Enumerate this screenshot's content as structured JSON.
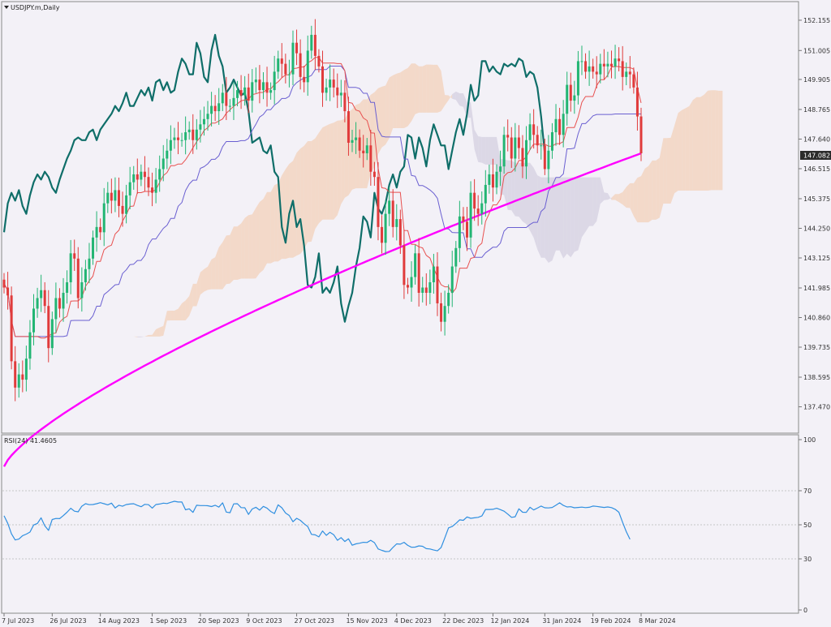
{
  "header": {
    "symbol_label": "USDJPY.m,Daily",
    "rsi_label": "RSI(24) 41.4605"
  },
  "chart_data": [
    {
      "type": "candlestick",
      "title": "USDJPY.m,Daily",
      "ylim": [
        136.5,
        152.8
      ],
      "price_ticks": [
        "152.155",
        "151.005",
        "149.905",
        "148.765",
        "147.640",
        "146.515",
        "145.375",
        "144.250",
        "143.125",
        "141.985",
        "140.860",
        "139.735",
        "138.595",
        "137.470"
      ],
      "current_price": "147.082",
      "x_labels": [
        "7 Jul 2023",
        "26 Jul 2023",
        "14 Aug 2023",
        "1 Sep 2023",
        "20 Sep 2023",
        "9 Oct 2023",
        "27 Oct 2023",
        "15 Nov 2023",
        "4 Dec 2023",
        "22 Dec 2023",
        "12 Jan 2024",
        "31 Jan 2024",
        "19 Feb 2024",
        "8 Mar 2024"
      ],
      "closes": [
        142.0,
        141.7,
        139.2,
        138.2,
        138.7,
        138.5,
        139.3,
        140.3,
        141.2,
        141.6,
        141.9,
        141.3,
        139.7,
        140.8,
        141.6,
        141.2,
        141.8,
        142.2,
        143.3,
        143.1,
        141.6,
        142.2,
        142.7,
        143.1,
        143.9,
        144.3,
        144.1,
        145.2,
        145.6,
        145.3,
        145.7,
        145.1,
        144.8,
        145.5,
        146.0,
        146.3,
        146.1,
        146.4,
        146.2,
        145.8,
        145.6,
        146.1,
        146.5,
        146.9,
        147.2,
        147.6,
        147.7,
        147.6,
        147.6,
        147.9,
        148.0,
        147.6,
        148.0,
        148.2,
        148.4,
        148.6,
        148.9,
        148.7,
        149.0,
        149.4,
        148.9,
        148.9,
        149.2,
        149.5,
        149.3,
        149.6,
        149.1,
        149.8,
        149.9,
        149.5,
        149.8,
        149.4,
        149.5,
        150.2,
        150.7,
        150.5,
        150.1,
        150.1,
        151.3,
        150.9,
        150.0,
        149.8,
        151.0,
        151.6,
        150.8,
        150.4,
        149.4,
        149.6,
        149.9,
        149.6,
        149.3,
        149.4,
        148.7,
        147.5,
        147.6,
        147.7,
        147.2,
        147.1,
        147.4,
        146.4,
        146.2,
        144.3,
        143.7,
        144.8,
        145.3,
        144.3,
        144.6,
        143.6,
        142.1,
        142.0,
        142.4,
        143.3,
        141.8,
        142.0,
        141.8,
        142.2,
        142.8,
        141.4,
        140.7,
        141.3,
        141.8,
        142.8,
        143.5,
        144.7,
        144.5,
        143.9,
        145.6,
        145.0,
        144.8,
        145.2,
        145.9,
        146.3,
        145.8,
        146.4,
        146.6,
        147.8,
        147.7,
        146.9,
        147.7,
        147.3,
        146.6,
        147.6,
        148.2,
        147.8,
        147.4,
        147.4,
        146.5,
        147.2,
        147.9,
        148.4,
        147.8,
        148.6,
        149.7,
        149.1,
        149.3,
        150.6,
        150.6,
        150.2,
        150.4,
        150.2,
        150.1,
        150.5,
        150.4,
        150.5,
        150.4,
        150.7,
        150.6,
        150.0,
        150.2,
        150.1,
        149.6,
        148.5,
        147.1
      ]
    },
    {
      "type": "line",
      "title": "RSI(24) 41.4605",
      "ylim": [
        0,
        100
      ],
      "levels": [
        30,
        50,
        70
      ],
      "y_ticks": [
        "100",
        "70",
        "50",
        "30",
        "0"
      ],
      "values": [
        55.3,
        50.8,
        44.7,
        41.1,
        41.6,
        43.6,
        44.5,
        45.7,
        49.9,
        50.8,
        54.1,
        49.4,
        46.7,
        53.1,
        53.7,
        53.6,
        55.4,
        57.4,
        59.7,
        58.0,
        57.6,
        60.9,
        62.4,
        61.8,
        61.9,
        62.4,
        63.0,
        62.4,
        61.7,
        62.7,
        59.9,
        61.5,
        60.9,
        61.9,
        62.2,
        62.4,
        61.4,
        60.6,
        62.0,
        61.8,
        59.8,
        61.9,
        62.2,
        62.7,
        62.5,
        63.2,
        63.8,
        63.4,
        63.4,
        58.8,
        59.4,
        57.3,
        61.5,
        61.3,
        61.3,
        61.2,
        60.7,
        61.5,
        60.4,
        62.9,
        57.5,
        57.1,
        62.3,
        62.4,
        60.1,
        60.0,
        56.1,
        59.3,
        60.3,
        58.6,
        60.8,
        59.8,
        57.8,
        56.6,
        61.7,
        60.0,
        56.9,
        55.5,
        51.8,
        53.8,
        52.6,
        50.6,
        49.0,
        44.4,
        44.1,
        42.9,
        46.4,
        43.8,
        45.6,
        44.2,
        40.9,
        42.5,
        40.2,
        41.8,
        38.0,
        38.8,
        39.2,
        39.7,
        39.6,
        40.9,
        39.5,
        35.8,
        35.0,
        34.3,
        34.4,
        36.7,
        38.8,
        38.6,
        39.7,
        37.9,
        36.8,
        36.9,
        37.6,
        37.4,
        36.0,
        35.8,
        35.2,
        34.7,
        36.6,
        42.3,
        48.2,
        49.0,
        50.8,
        52.9,
        52.6,
        54.6,
        53.8,
        54.1,
        54.4,
        55.2,
        59.0,
        59.0,
        59.1,
        59.7,
        58.9,
        58.0,
        56.3,
        54.4,
        54.7,
        59.4,
        57.4,
        57.3,
        60.3,
        58.7,
        59.8,
        61.0,
        60.0,
        59.9,
        60.2,
        61.5,
        62.9,
        61.4,
        60.5,
        60.6,
        60.0,
        60.2,
        60.4,
        60.1,
        60.3,
        61.0,
        60.8,
        60.5,
        60.2,
        60.5,
        60.1,
        59.1,
        57.4,
        51.5,
        46.0,
        41.5
      ]
    }
  ]
}
